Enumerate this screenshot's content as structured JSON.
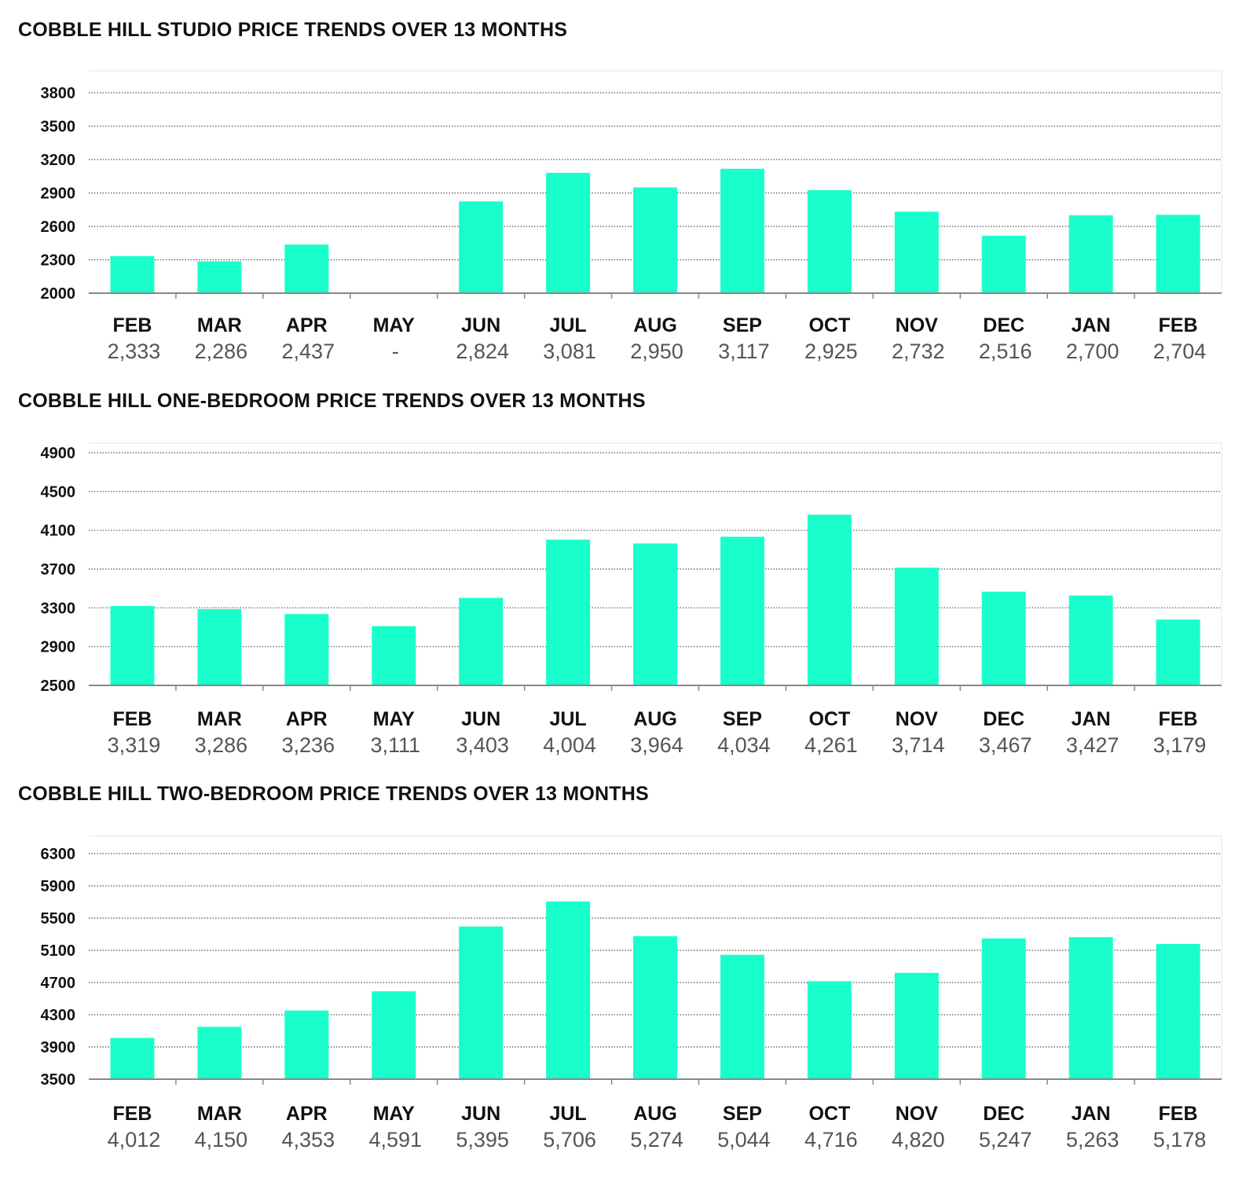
{
  "colors": {
    "bar": "#19FFCB",
    "grid": "#555555",
    "axis": "#888888",
    "text": "#111111",
    "value_text": "#555555"
  },
  "chart_data": [
    {
      "type": "bar",
      "title": "COBBLE HILL STUDIO PRICE TRENDS OVER 13 MONTHS",
      "categories": [
        "FEB",
        "MAR",
        "APR",
        "MAY",
        "JUN",
        "JUL",
        "AUG",
        "SEP",
        "OCT",
        "NOV",
        "DEC",
        "JAN",
        "FEB"
      ],
      "values": [
        2333,
        2286,
        2437,
        null,
        2824,
        3081,
        2950,
        3117,
        2925,
        2732,
        2516,
        2700,
        2704
      ],
      "value_labels": [
        "2,333",
        "2,286",
        "2,437",
        "-",
        "2,824",
        "3,081",
        "2,950",
        "3,117",
        "2,925",
        "2,732",
        "2,516",
        "2,700",
        "2,704"
      ],
      "yticks": [
        "2000",
        "2300",
        "2600",
        "2900",
        "3200",
        "3500",
        "3800"
      ],
      "ylim": [
        2000,
        3800
      ],
      "grid": true
    },
    {
      "type": "bar",
      "title": "COBBLE HILL ONE-BEDROOM PRICE TRENDS OVER 13 MONTHS",
      "categories": [
        "FEB",
        "MAR",
        "APR",
        "MAY",
        "JUN",
        "JUL",
        "AUG",
        "SEP",
        "OCT",
        "NOV",
        "DEC",
        "JAN",
        "FEB"
      ],
      "values": [
        3319,
        3286,
        3236,
        3111,
        3403,
        4004,
        3964,
        4034,
        4261,
        3714,
        3467,
        3427,
        3179
      ],
      "value_labels": [
        "3,319",
        "3,286",
        "3,236",
        "3,111",
        "3,403",
        "4,004",
        "3,964",
        "4,034",
        "4,261",
        "3,714",
        "3,467",
        "3,427",
        "3,179"
      ],
      "yticks": [
        "2500",
        "2900",
        "3300",
        "3700",
        "4100",
        "4500",
        "4900"
      ],
      "ylim": [
        2500,
        4900
      ],
      "grid": true
    },
    {
      "type": "bar",
      "title": "COBBLE HILL TWO-BEDROOM PRICE TRENDS OVER 13 MONTHS",
      "categories": [
        "FEB",
        "MAR",
        "APR",
        "MAY",
        "JUN",
        "JUL",
        "AUG",
        "SEP",
        "OCT",
        "NOV",
        "DEC",
        "JAN",
        "FEB"
      ],
      "values": [
        4012,
        4150,
        4353,
        4591,
        5395,
        5706,
        5274,
        5044,
        4716,
        4820,
        5247,
        5263,
        5178
      ],
      "value_labels": [
        "4,012",
        "4,150",
        "4,353",
        "4,591",
        "5,395",
        "5,706",
        "5,274",
        "5,044",
        "4,716",
        "4,820",
        "5,247",
        "5,263",
        "5,178"
      ],
      "yticks": [
        "3500",
        "3900",
        "4300",
        "4700",
        "5100",
        "5500",
        "5900",
        "6300"
      ],
      "ylim": [
        3500,
        6300
      ],
      "grid": true
    }
  ]
}
